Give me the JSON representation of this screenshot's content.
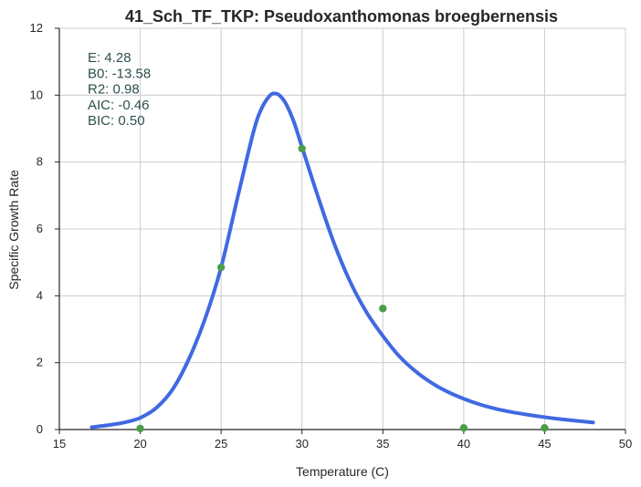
{
  "chart_data": {
    "type": "scatter",
    "title": "41_Sch_TF_TKP: Pseudoxanthomonas broegbernensis",
    "xlabel": "Temperature (C)",
    "ylabel": "Specific Growth Rate",
    "xlim": [
      15,
      50
    ],
    "ylim": [
      0,
      12
    ],
    "xticks": [
      15,
      20,
      25,
      30,
      35,
      40,
      45,
      50
    ],
    "yticks": [
      0,
      2,
      4,
      6,
      8,
      10,
      12
    ],
    "grid": true,
    "points": {
      "x": [
        20,
        25,
        30,
        35,
        40,
        45
      ],
      "y": [
        0.03,
        4.85,
        8.4,
        3.62,
        0.05,
        0.05
      ],
      "color": "#4a9e4a"
    },
    "fit_curve": {
      "type": "line",
      "color": "#4169e1",
      "x": [
        17,
        18,
        19,
        20,
        21,
        22,
        23,
        24,
        25,
        26,
        27,
        27.5,
        28,
        28.3,
        28.6,
        29,
        29.5,
        30,
        31,
        32,
        33,
        34,
        35,
        36,
        37,
        38,
        39,
        40,
        41,
        42,
        43,
        44,
        45,
        46,
        47,
        48
      ],
      "y": [
        0.07,
        0.13,
        0.21,
        0.35,
        0.65,
        1.2,
        2.1,
        3.3,
        4.85,
        6.9,
        8.9,
        9.6,
        9.98,
        10.05,
        10.0,
        9.75,
        9.2,
        8.45,
        6.95,
        5.55,
        4.4,
        3.5,
        2.8,
        2.2,
        1.75,
        1.4,
        1.13,
        0.92,
        0.75,
        0.62,
        0.52,
        0.44,
        0.37,
        0.31,
        0.26,
        0.21
      ]
    },
    "annotations": [
      "E:  4.28",
      "B0:  -13.58",
      "R2:  0.98",
      "AIC: -0.46",
      "BIC: 0.50"
    ]
  }
}
